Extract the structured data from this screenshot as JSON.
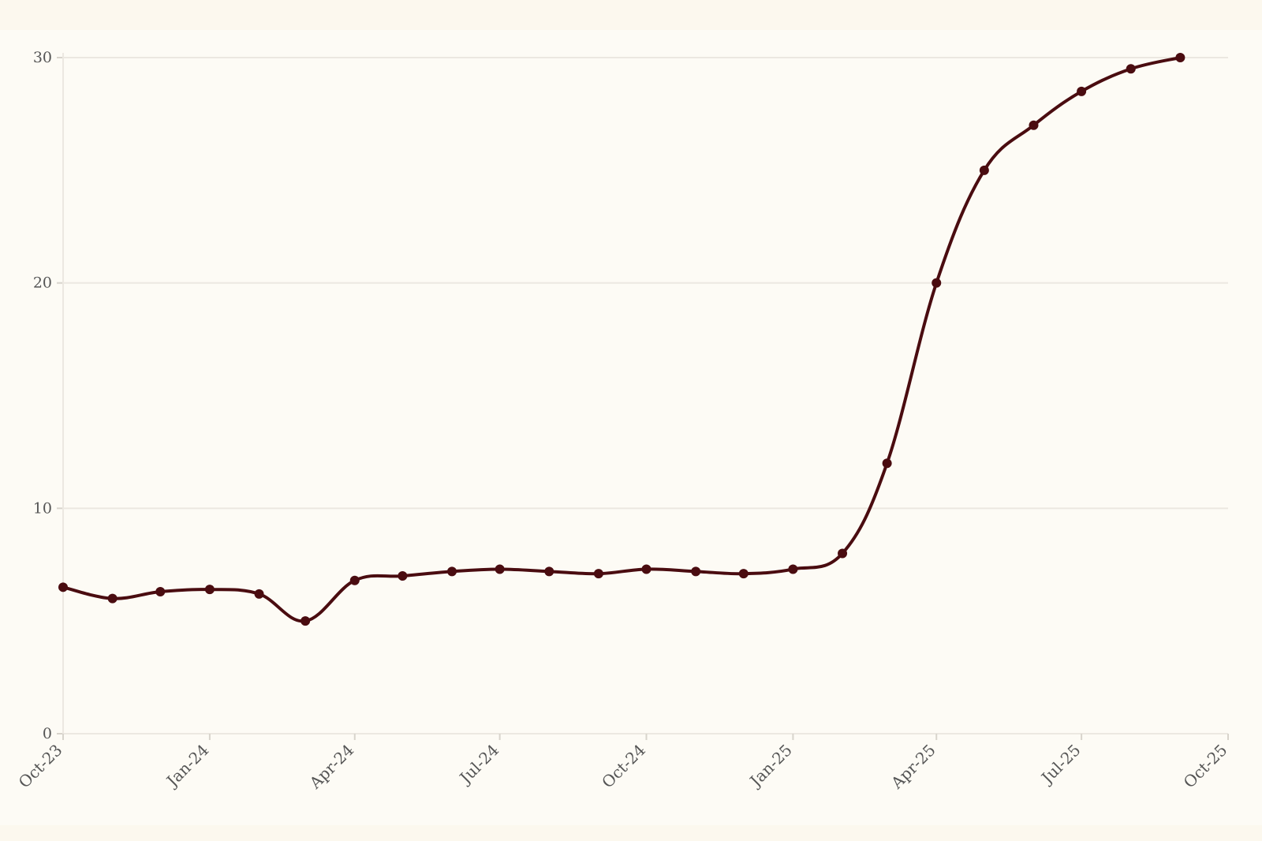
{
  "chart_data": {
    "type": "line",
    "title": "",
    "xlabel": "",
    "ylabel": "",
    "x_axis": {
      "type": "date",
      "range": [
        "2023-10-01",
        "2025-10-01"
      ],
      "ticks": [
        {
          "date": "2023-10-01",
          "label": "Oct-23"
        },
        {
          "date": "2024-01-01",
          "label": "Jan-24"
        },
        {
          "date": "2024-04-01",
          "label": "Apr-24"
        },
        {
          "date": "2024-07-01",
          "label": "Jul-24"
        },
        {
          "date": "2024-10-01",
          "label": "Oct-24"
        },
        {
          "date": "2025-01-01",
          "label": "Jan-25"
        },
        {
          "date": "2025-04-01",
          "label": "Apr-25"
        },
        {
          "date": "2025-07-01",
          "label": "Jul-25"
        },
        {
          "date": "2025-10-01",
          "label": "Oct-25"
        }
      ]
    },
    "y_axis": {
      "range": [
        0,
        30
      ],
      "ticks": [
        {
          "value": 0,
          "label": "0"
        },
        {
          "value": 10,
          "label": "10"
        },
        {
          "value": 20,
          "label": "20"
        },
        {
          "value": 30,
          "label": "30"
        }
      ]
    },
    "grid": "horizontal",
    "legend": "none",
    "series": [
      {
        "color": "#4a0c10",
        "points": [
          {
            "x": "2023-10-01",
            "y": 6.5
          },
          {
            "x": "2023-11-01",
            "y": 6.0
          },
          {
            "x": "2023-12-01",
            "y": 6.3
          },
          {
            "x": "2024-01-01",
            "y": 6.4
          },
          {
            "x": "2024-02-01",
            "y": 6.2
          },
          {
            "x": "2024-03-01",
            "y": 5.0
          },
          {
            "x": "2024-04-01",
            "y": 6.8
          },
          {
            "x": "2024-05-01",
            "y": 7.0
          },
          {
            "x": "2024-06-01",
            "y": 7.2
          },
          {
            "x": "2024-07-01",
            "y": 7.3
          },
          {
            "x": "2024-08-01",
            "y": 7.2
          },
          {
            "x": "2024-09-01",
            "y": 7.1
          },
          {
            "x": "2024-10-01",
            "y": 7.3
          },
          {
            "x": "2024-11-01",
            "y": 7.2
          },
          {
            "x": "2024-12-01",
            "y": 7.1
          },
          {
            "x": "2025-01-01",
            "y": 7.3
          },
          {
            "x": "2025-02-01",
            "y": 8.0
          },
          {
            "x": "2025-03-01",
            "y": 12.0
          },
          {
            "x": "2025-04-01",
            "y": 20.0
          },
          {
            "x": "2025-05-01",
            "y": 25.0
          },
          {
            "x": "2025-06-01",
            "y": 27.0
          },
          {
            "x": "2025-07-01",
            "y": 28.5
          },
          {
            "x": "2025-08-01",
            "y": 29.5
          },
          {
            "x": "2025-09-01",
            "y": 30.0
          }
        ]
      }
    ],
    "colors": {
      "background": "#fdfbf5",
      "line": "#4a0c10",
      "grid": "#ece8e1",
      "axis_text": "#555555"
    }
  }
}
